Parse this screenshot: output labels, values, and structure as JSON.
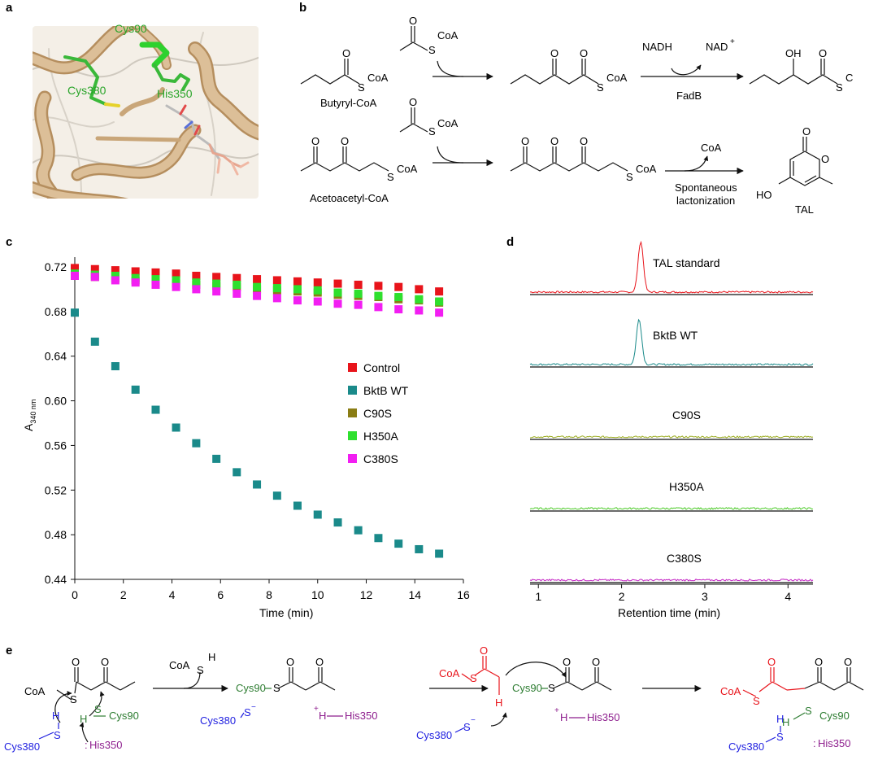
{
  "panels": {
    "a": {
      "letter": "a",
      "residues": [
        "Cys90",
        "Cys380",
        "His350"
      ]
    },
    "b": {
      "letter": "b",
      "substrate1": "Butyryl-CoA",
      "substrate2": "Acetoacetyl-CoA",
      "coa": "CoA",
      "nadh": "NADH",
      "nad": "NAD",
      "nad_sup": "+",
      "fadb": "FadB",
      "spont1": "Spontaneous",
      "spont2": "lactonization",
      "tal": "TAL",
      "oh": "OH",
      "ho": "HO",
      "o": "O",
      "s": "S",
      "cut": "C"
    },
    "c": {
      "letter": "c"
    },
    "d": {
      "letter": "d"
    },
    "e": {
      "letter": "e",
      "coa": "CoA",
      "s": "S",
      "h": "H",
      "o": "O",
      "minus": "−",
      "plus": "+",
      "colon": ":",
      "cys90": "Cys90",
      "cys380": "Cys380",
      "his350": "His350",
      "colors": {
        "cys90": "#2e7d32",
        "cys380": "#1f1fe0",
        "his350": "#8e1f8e",
        "red": "#e8141b"
      }
    }
  },
  "chart_data": [
    {
      "panel": "c",
      "type": "scatter",
      "xlabel": "Time (min)",
      "ylabel": "A",
      "ylabel_sub": "340 nm",
      "xlim": [
        0,
        16
      ],
      "ylim": [
        0.44,
        0.72
      ],
      "xticks": [
        0,
        2,
        4,
        6,
        8,
        10,
        12,
        14,
        16
      ],
      "yticks": [
        0.44,
        0.48,
        0.52,
        0.56,
        0.6,
        0.64,
        0.68,
        0.72
      ],
      "ytick_labels": [
        "0.44",
        "0.48",
        "0.52",
        "0.56",
        "0.60",
        "0.64",
        "0.68",
        "0.72"
      ],
      "legend_position": "center-right",
      "x": [
        0,
        0.83,
        1.67,
        2.5,
        3.33,
        4.17,
        5.0,
        5.83,
        6.67,
        7.5,
        8.33,
        9.17,
        10.0,
        10.83,
        11.67,
        12.5,
        13.33,
        14.17,
        15.0
      ],
      "series": [
        {
          "name": "Control",
          "color": "#e8141b",
          "values": [
            0.719,
            0.718,
            0.717,
            0.716,
            0.715,
            0.714,
            0.712,
            0.711,
            0.71,
            0.709,
            0.708,
            0.707,
            0.706,
            0.705,
            0.704,
            0.703,
            0.702,
            0.7,
            0.698
          ]
        },
        {
          "name": "BktB WT",
          "color": "#1a8a8a",
          "values": [
            0.679,
            0.653,
            0.631,
            0.61,
            0.592,
            0.576,
            0.562,
            0.548,
            0.536,
            0.525,
            0.515,
            0.506,
            0.498,
            0.491,
            0.484,
            0.477,
            0.472,
            0.467,
            0.463
          ]
        },
        {
          "name": "C90S",
          "color": "#8a7d14",
          "values": [
            0.712,
            0.711,
            0.71,
            0.708,
            0.707,
            0.705,
            0.704,
            0.703,
            0.702,
            0.7,
            0.699,
            0.698,
            0.697,
            0.695,
            0.694,
            0.693,
            0.691,
            0.69,
            0.688
          ]
        },
        {
          "name": "H350A",
          "color": "#2ee02e",
          "values": [
            0.714,
            0.713,
            0.712,
            0.71,
            0.709,
            0.708,
            0.706,
            0.705,
            0.704,
            0.702,
            0.701,
            0.7,
            0.699,
            0.697,
            0.696,
            0.694,
            0.693,
            0.691,
            0.689
          ]
        },
        {
          "name": "C380S",
          "color": "#f21ef2",
          "values": [
            0.712,
            0.711,
            0.708,
            0.706,
            0.704,
            0.702,
            0.7,
            0.698,
            0.696,
            0.694,
            0.692,
            0.69,
            0.689,
            0.687,
            0.686,
            0.684,
            0.682,
            0.681,
            0.679
          ]
        }
      ]
    },
    {
      "panel": "d",
      "type": "line",
      "xlabel": "Retention time (min)",
      "xlim": [
        0.9,
        4.3
      ],
      "xticks": [
        1,
        2,
        3,
        4
      ],
      "series": [
        {
          "name": "TAL standard",
          "color": "#e8141b",
          "peak_x": 2.23,
          "peak_height": 1.0
        },
        {
          "name": "BktB WT",
          "color": "#1a8a8a",
          "peak_x": 2.21,
          "peak_height": 0.9
        },
        {
          "name": "C90S",
          "color": "#9aab1e",
          "peak_x": null,
          "peak_height": 0
        },
        {
          "name": "H350A",
          "color": "#4ccb28",
          "peak_x": null,
          "peak_height": 0
        },
        {
          "name": "C380S",
          "color": "#c21ec2",
          "peak_x": null,
          "peak_height": 0
        }
      ]
    }
  ]
}
